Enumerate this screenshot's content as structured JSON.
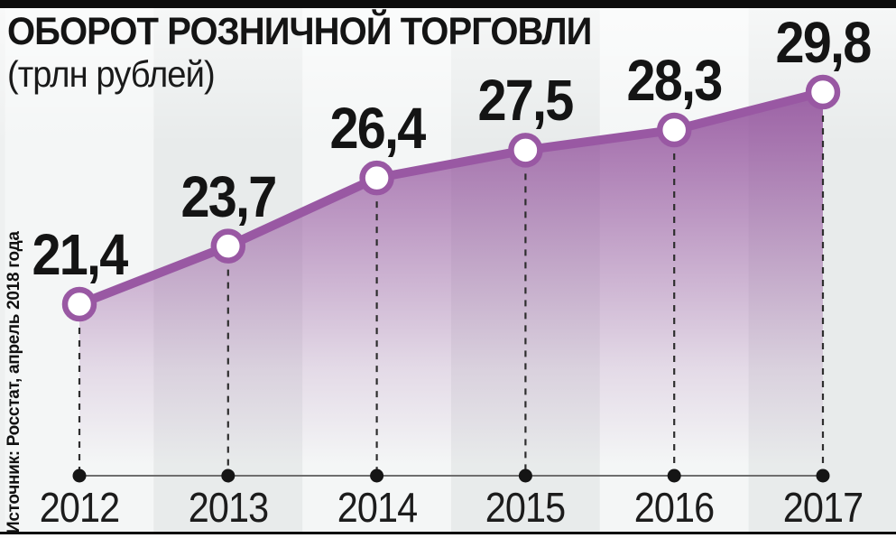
{
  "header": {
    "title": "ОБОРОТ РОЗНИЧНОЙ ТОРГОВЛИ",
    "subtitle": "(трлн рублей)"
  },
  "source_note": "Источник: Росстат, апрель 2018 года",
  "chart_data": {
    "type": "line",
    "title": "ОБОРОТ РОЗНИЧНОЙ ТОРГОВЛИ (трлн рублей)",
    "categories": [
      "2012",
      "2013",
      "2014",
      "2015",
      "2016",
      "2017"
    ],
    "values": [
      21.4,
      23.7,
      26.4,
      27.5,
      28.3,
      29.8
    ],
    "value_labels": [
      "21,4",
      "23,7",
      "26,4",
      "27,5",
      "28,3",
      "29,8"
    ],
    "xlabel": "",
    "ylabel": "трлн рублей",
    "ylim": [
      20,
      31
    ],
    "legend": "none",
    "grid": "dashed vertical droplines to baseline dots",
    "line_color": "#9958a3",
    "marker": {
      "fill": "#ffffff",
      "stroke": "#9958a3"
    },
    "area_fill_top": "#8f4b99",
    "dropline_color": "#2e2e2e",
    "axis_color": "#6e6e6e",
    "dot_color": "#151515",
    "stripe_colors": [
      "#f4f6f6",
      "#e8ebeb"
    ]
  }
}
